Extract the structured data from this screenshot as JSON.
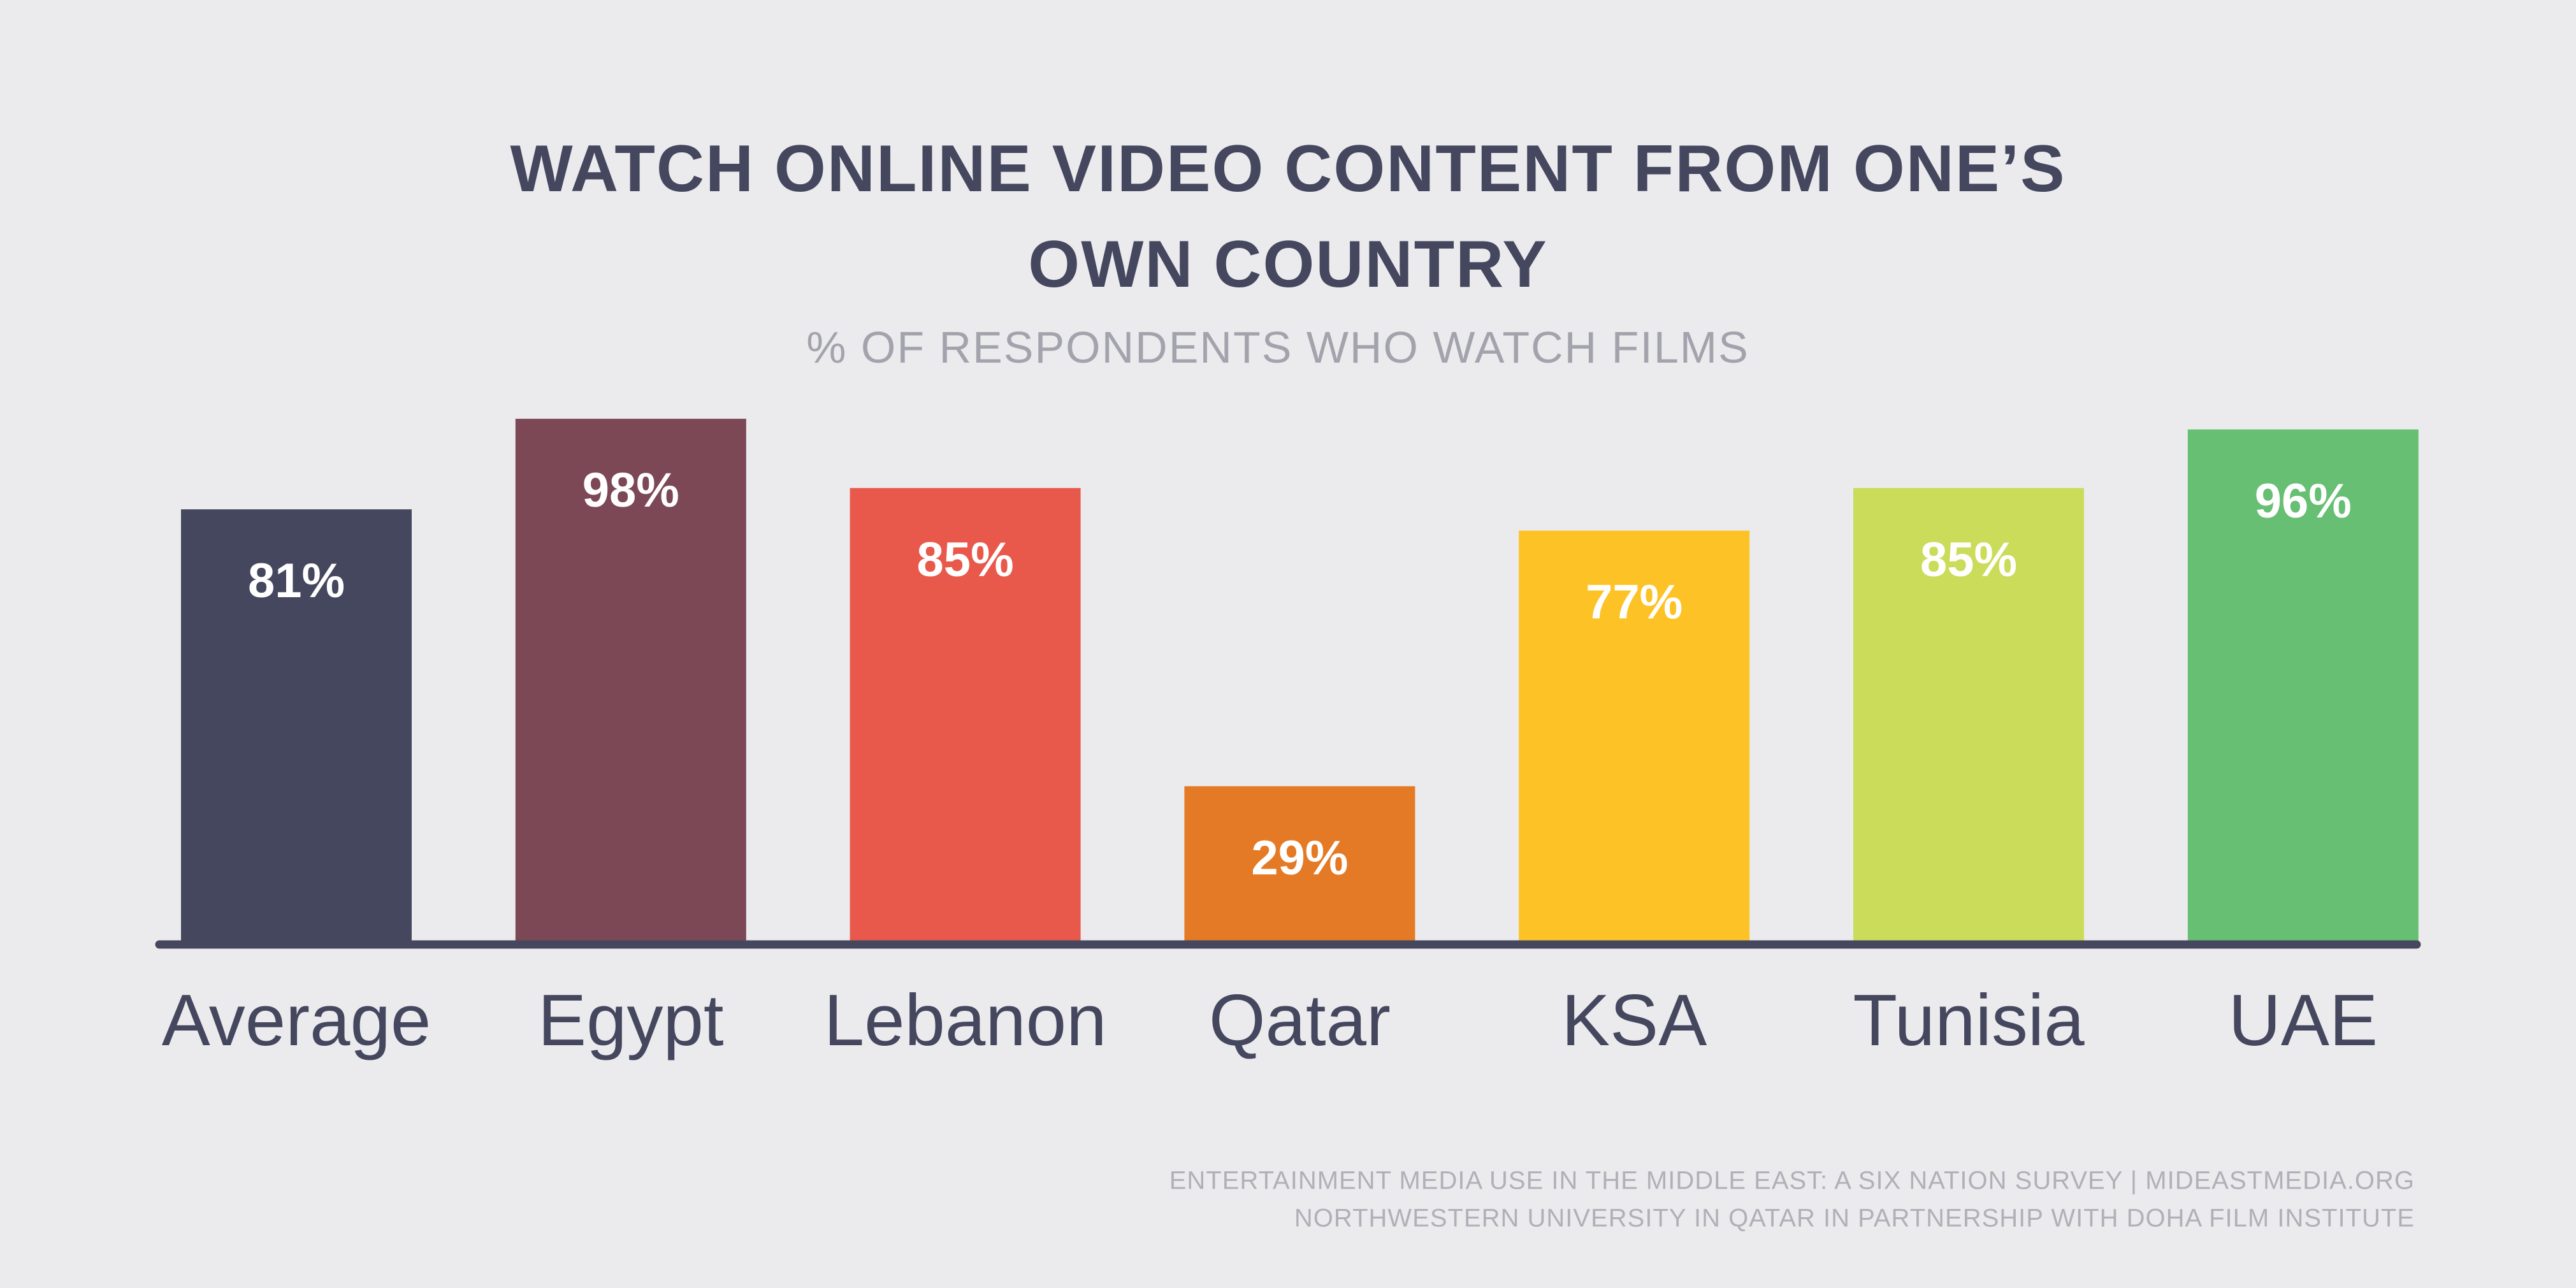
{
  "chart_data": {
    "type": "bar",
    "title": "WATCH ONLINE VIDEO CONTENT FROM ONE’S OWN COUNTRY",
    "subtitle": "% OF RESPONDENTS WHO WATCH FILMS",
    "categories": [
      "Average",
      "Egypt",
      "Lebanon",
      "Qatar",
      "KSA",
      "Tunisia",
      "UAE"
    ],
    "values": [
      81,
      98,
      85,
      29,
      77,
      85,
      96
    ],
    "value_labels": [
      "81%",
      "98%",
      "85%",
      "29%",
      "77%",
      "85%",
      "96%"
    ],
    "colors": [
      "#45475f",
      "#7c4855",
      "#e8594c",
      "#e47a25",
      "#fdc326",
      "#cbdc5a",
      "#66bf72"
    ],
    "source": [
      "ENTERTAINMENT MEDIA USE IN THE MIDDLE EAST: A SIX NATION SURVEY | MIDEASTMEDIA.ORG",
      "NORTHWESTERN UNIVERSITY IN QATAR IN PARTNERSHIP WITH DOHA FILM INSTITUTE"
    ]
  }
}
